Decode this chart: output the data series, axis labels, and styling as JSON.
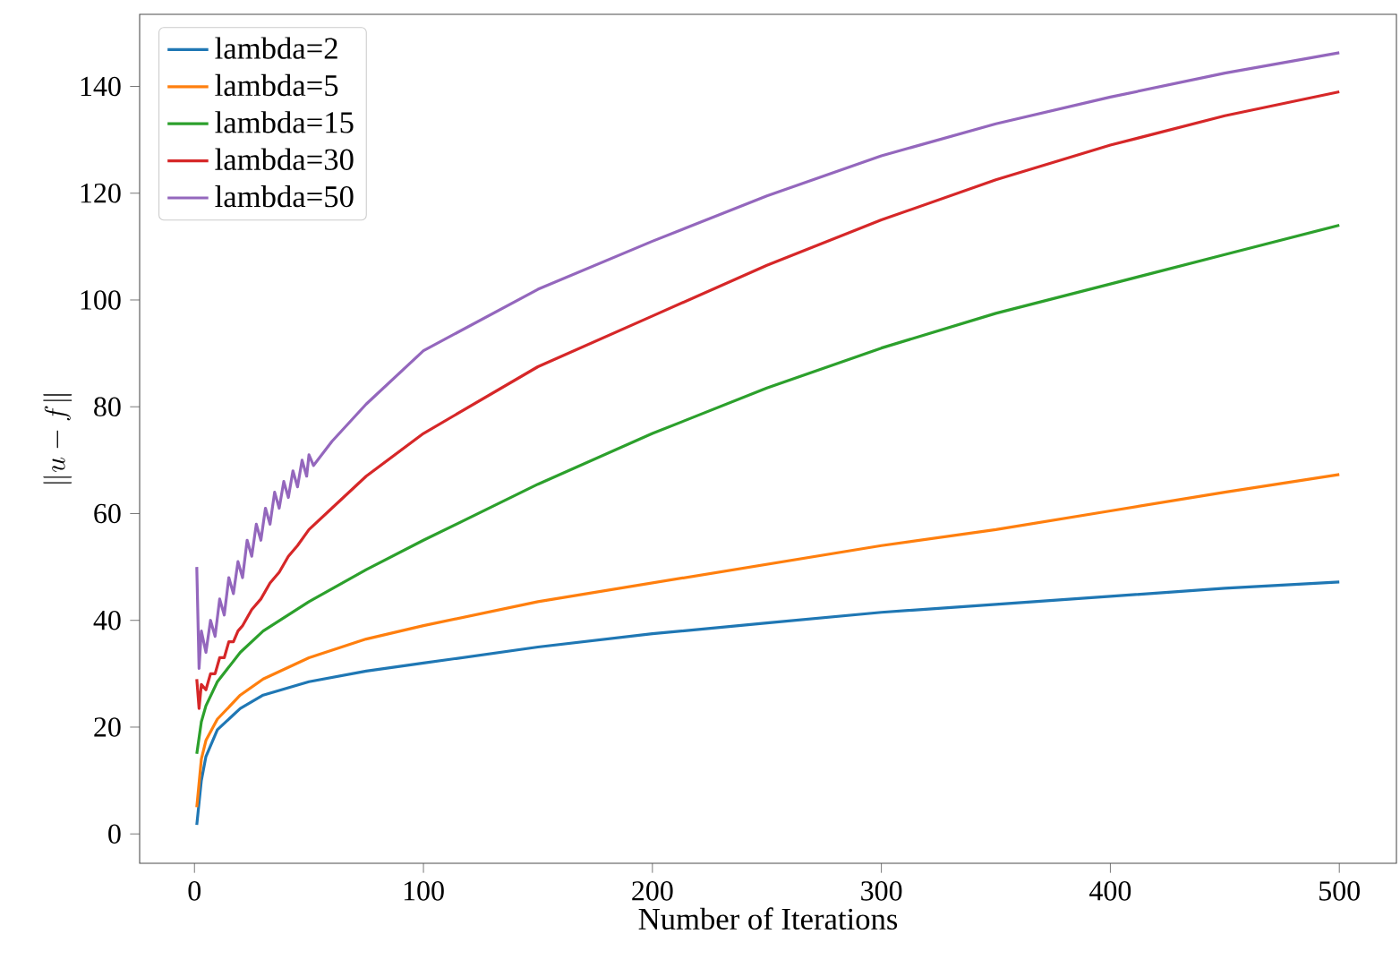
{
  "chart_data": {
    "type": "line",
    "xlabel": "Number of Iterations",
    "ylabel": "\\|u-f\\|",
    "xlim": [
      -23.95,
      524.95
    ],
    "ylim": [
      -5.5,
      153.5
    ],
    "xticks": [
      0,
      100,
      200,
      300,
      400,
      500
    ],
    "yticks": [
      0,
      20,
      40,
      60,
      80,
      100,
      120,
      140
    ],
    "grid": false,
    "legend": "top left",
    "series": [
      {
        "name": "lambda=2",
        "color": "#1f77b4",
        "x": [
          1,
          3,
          5,
          10,
          20,
          30,
          50,
          75,
          100,
          150,
          200,
          250,
          300,
          350,
          400,
          450,
          500
        ],
        "values": [
          1.7,
          10,
          14.5,
          19.5,
          23.5,
          26,
          28.5,
          30.5,
          32,
          35,
          37.5,
          39.5,
          41.5,
          43,
          44.5,
          46,
          47.2
        ]
      },
      {
        "name": "lambda=5",
        "color": "#ff7f0e",
        "x": [
          1,
          3,
          5,
          10,
          20,
          30,
          50,
          75,
          100,
          150,
          200,
          250,
          300,
          350,
          400,
          450,
          500
        ],
        "values": [
          5,
          14,
          17.5,
          21.5,
          26,
          29,
          33,
          36.5,
          39,
          43.5,
          47,
          50.5,
          54,
          57,
          60.5,
          64,
          67.3
        ]
      },
      {
        "name": "lambda=15",
        "color": "#2ca02c",
        "x": [
          1,
          3,
          5,
          10,
          20,
          30,
          50,
          75,
          100,
          150,
          200,
          250,
          300,
          350,
          400,
          450,
          500
        ],
        "values": [
          15,
          21,
          24,
          28.5,
          34,
          38,
          43.5,
          49.5,
          55,
          65.5,
          75,
          83.5,
          91,
          97.5,
          103,
          108.5,
          114
        ]
      },
      {
        "name": "lambda=30",
        "color": "#d62728",
        "x": [
          1,
          2,
          3,
          5,
          7,
          9,
          11,
          13,
          15,
          17,
          19,
          21,
          25,
          29,
          33,
          37,
          41,
          45,
          50,
          60,
          75,
          100,
          150,
          200,
          250,
          300,
          350,
          400,
          450,
          500
        ],
        "values": [
          29,
          23.5,
          28,
          27,
          30,
          30,
          33,
          33,
          36,
          36,
          38,
          39,
          42,
          44,
          47,
          49,
          52,
          54,
          57,
          61,
          67,
          75,
          87.5,
          97,
          106.5,
          115,
          122.5,
          129,
          134.5,
          139
        ]
      },
      {
        "name": "lambda=50",
        "color": "#9467bd",
        "x": [
          1,
          2,
          3,
          5,
          7,
          9,
          11,
          13,
          15,
          17,
          19,
          21,
          23,
          25,
          27,
          29,
          31,
          33,
          35,
          37,
          39,
          41,
          43,
          45,
          47,
          49,
          50,
          52,
          60,
          75,
          100,
          150,
          200,
          250,
          300,
          350,
          400,
          450,
          500
        ],
        "values": [
          50,
          31,
          38,
          34,
          40,
          37,
          44,
          41,
          48,
          45,
          51,
          48,
          55,
          52,
          58,
          55,
          61,
          58,
          64,
          61,
          66,
          63,
          68,
          65,
          70,
          67,
          71,
          69,
          73.5,
          80.5,
          90.5,
          102,
          111,
          119.5,
          127,
          133,
          138,
          142.5,
          146.3
        ]
      }
    ]
  }
}
